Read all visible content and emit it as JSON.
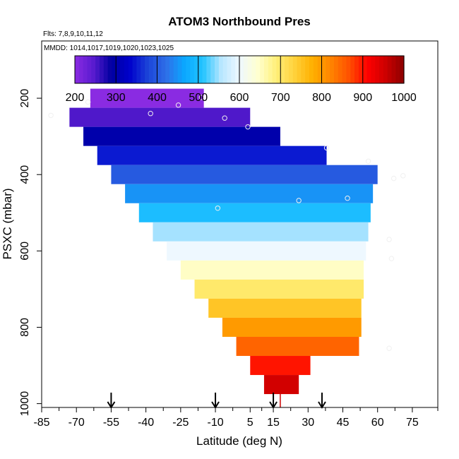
{
  "chart_data": {
    "type": "heatmap",
    "title": "ATOM3 Northbound Pres",
    "annotations": {
      "flights": "Flts: 7,8,9,10,11,12",
      "dates": "MMDD: 1014,1017,1019,1020,1023,1025"
    },
    "xlabel": "Latitude (deg N)",
    "ylabel": "PSXC (mbar)",
    "xlim": [
      -85,
      86
    ],
    "ylim": [
      1010,
      50
    ],
    "x_ticks": [
      -85,
      -70,
      -55,
      -40,
      -25,
      -10,
      5,
      15,
      30,
      45,
      60,
      75
    ],
    "y_ticks": [
      200,
      400,
      600,
      800,
      1000
    ],
    "colorbar": {
      "range": [
        200,
        1000
      ],
      "ticks": [
        200,
        300,
        400,
        500,
        600,
        700,
        800,
        900,
        1000
      ],
      "colors": [
        "#8a2be2",
        "#5a1bd0",
        "#0000a0",
        "#0000cc",
        "#1c45d8",
        "#2f6fe8",
        "#0aa8ff",
        "#22c4ff",
        "#b8e6ff",
        "#eef8ff",
        "#ffffd0",
        "#fff07a",
        "#ffd23c",
        "#ffb000",
        "#ff8400",
        "#ff5000",
        "#ff0000",
        "#cc0000",
        "#8b0000"
      ]
    },
    "bands": [
      {
        "p": 200,
        "x0": -64,
        "x1": -15
      },
      {
        "p": 250,
        "x0": -73,
        "x1": 5
      },
      {
        "p": 300,
        "x0": -67,
        "x1": 18
      },
      {
        "p": 350,
        "x0": -61,
        "x1": 38
      },
      {
        "p": 400,
        "x0": -55,
        "x1": 60
      },
      {
        "p": 450,
        "x0": -49,
        "x1": 58
      },
      {
        "p": 500,
        "x0": -43,
        "x1": 57
      },
      {
        "p": 550,
        "x0": -37,
        "x1": 56
      },
      {
        "p": 600,
        "x0": -31,
        "x1": 55
      },
      {
        "p": 650,
        "x0": -25,
        "x1": 54
      },
      {
        "p": 700,
        "x0": -19,
        "x1": 54
      },
      {
        "p": 750,
        "x0": -13,
        "x1": 53
      },
      {
        "p": 800,
        "x0": -7,
        "x1": 53
      },
      {
        "p": 850,
        "x0": -1,
        "x1": 52
      },
      {
        "p": 900,
        "x0": 5,
        "x1": 31
      },
      {
        "p": 950,
        "x0": 11,
        "x1": 26
      }
    ],
    "points": [
      {
        "x": -65,
        "y": 210
      },
      {
        "x": -81,
        "y": 245
      },
      {
        "x": -38,
        "y": 240
      },
      {
        "x": -26,
        "y": 218
      },
      {
        "x": -16,
        "y": 198
      },
      {
        "x": -6,
        "y": 252
      },
      {
        "x": 4,
        "y": 275
      },
      {
        "x": 38,
        "y": 330
      },
      {
        "x": 56,
        "y": 365
      },
      {
        "x": 67,
        "y": 410
      },
      {
        "x": 71,
        "y": 403
      },
      {
        "x": 26,
        "y": 468
      },
      {
        "x": -9,
        "y": 488
      },
      {
        "x": 47,
        "y": 462
      },
      {
        "x": 65,
        "y": 570
      },
      {
        "x": 66,
        "y": 620
      },
      {
        "x": 65,
        "y": 855
      }
    ],
    "arrows": [
      -55,
      -10,
      15,
      36
    ],
    "marker_x": 18
  }
}
